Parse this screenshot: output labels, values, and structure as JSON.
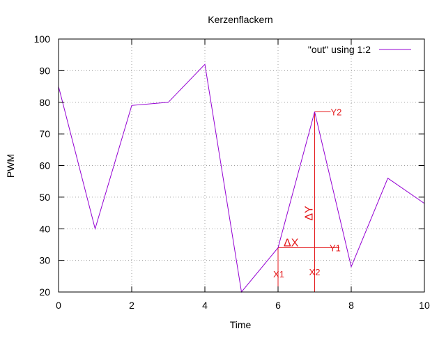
{
  "chart_data": {
    "type": "line",
    "title": "Kerzenflackern",
    "xlabel": "Time",
    "ylabel": "PWM",
    "xlim": [
      0,
      10
    ],
    "ylim": [
      20,
      100
    ],
    "x_ticks": [
      0,
      2,
      4,
      6,
      8,
      10
    ],
    "y_ticks": [
      20,
      30,
      40,
      50,
      60,
      70,
      80,
      90,
      100
    ],
    "grid": true,
    "legend_position": "top-right",
    "series": [
      {
        "name": "\"out\" using 1:2",
        "color": "#9400d3",
        "x": [
          0,
          1,
          2,
          3,
          4,
          5,
          6,
          7,
          8,
          9,
          10
        ],
        "y": [
          85,
          40,
          79,
          80,
          92,
          20,
          34,
          77,
          28,
          56,
          48
        ]
      }
    ],
    "annotations": {
      "color": "#e41a1c",
      "x1": {
        "label": "X1",
        "x": 6,
        "y": 34
      },
      "x2": {
        "label": "X2",
        "x": 7,
        "y": 77
      },
      "y1": {
        "label": "Y1",
        "x": 6,
        "y": 34
      },
      "y2": {
        "label": "Y2",
        "x": 7,
        "y": 77
      },
      "delta_x": {
        "label": "ΔX"
      },
      "delta_y": {
        "label": "ΔY"
      }
    }
  }
}
